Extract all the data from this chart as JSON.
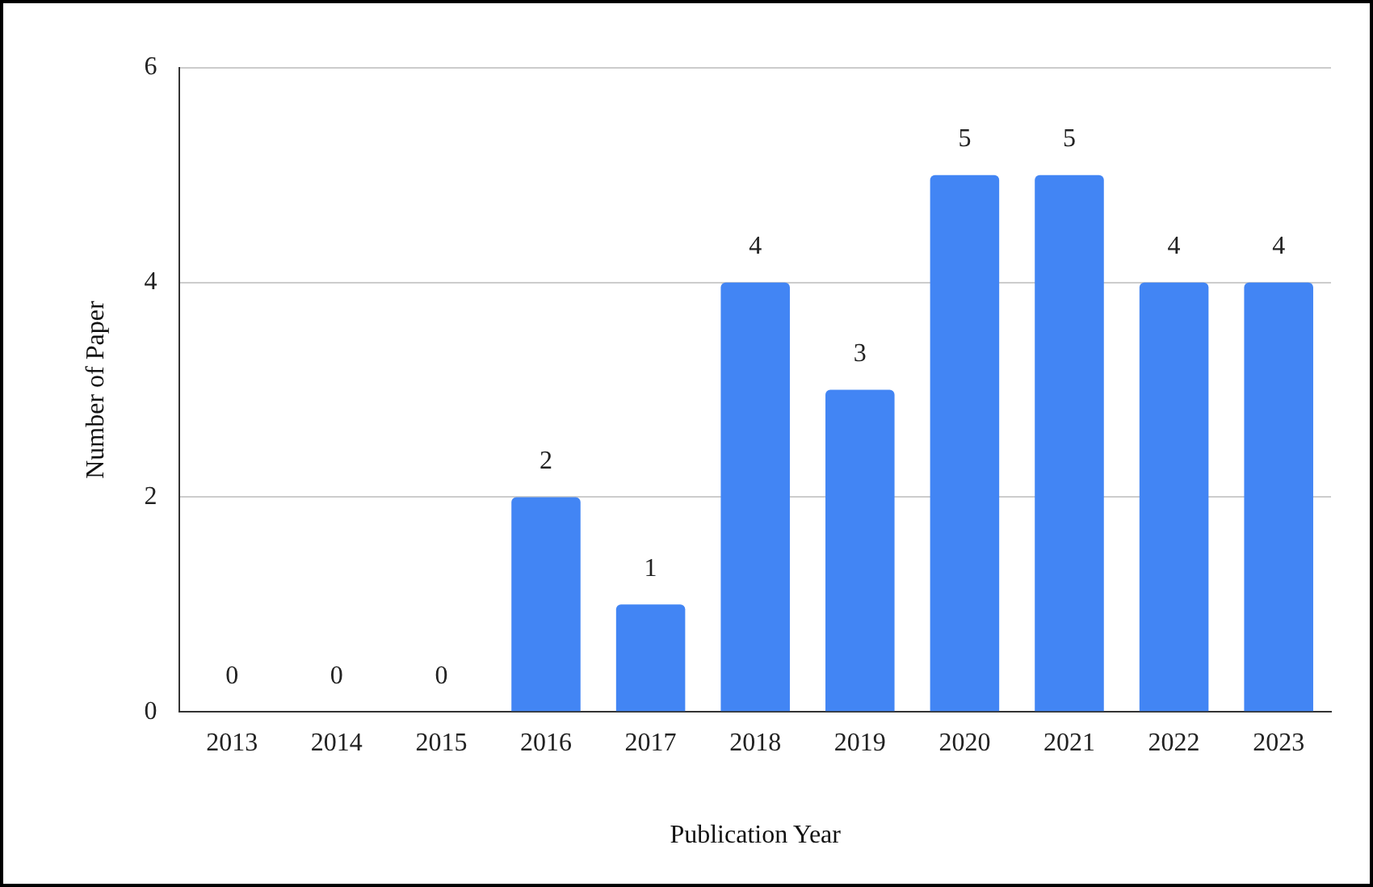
{
  "chart_data": {
    "type": "bar",
    "xlabel": "Publication Year",
    "ylabel": "Number of Paper",
    "categories": [
      "2013",
      "2014",
      "2015",
      "2016",
      "2017",
      "2018",
      "2019",
      "2020",
      "2021",
      "2022",
      "2023"
    ],
    "values": [
      0,
      0,
      0,
      2,
      1,
      4,
      3,
      5,
      5,
      4,
      4
    ],
    "color": "#4285f4",
    "ylim": [
      0,
      6
    ],
    "yticks": [
      0,
      2,
      4,
      6
    ],
    "grid": "y",
    "data_labels": true,
    "legend": false
  }
}
